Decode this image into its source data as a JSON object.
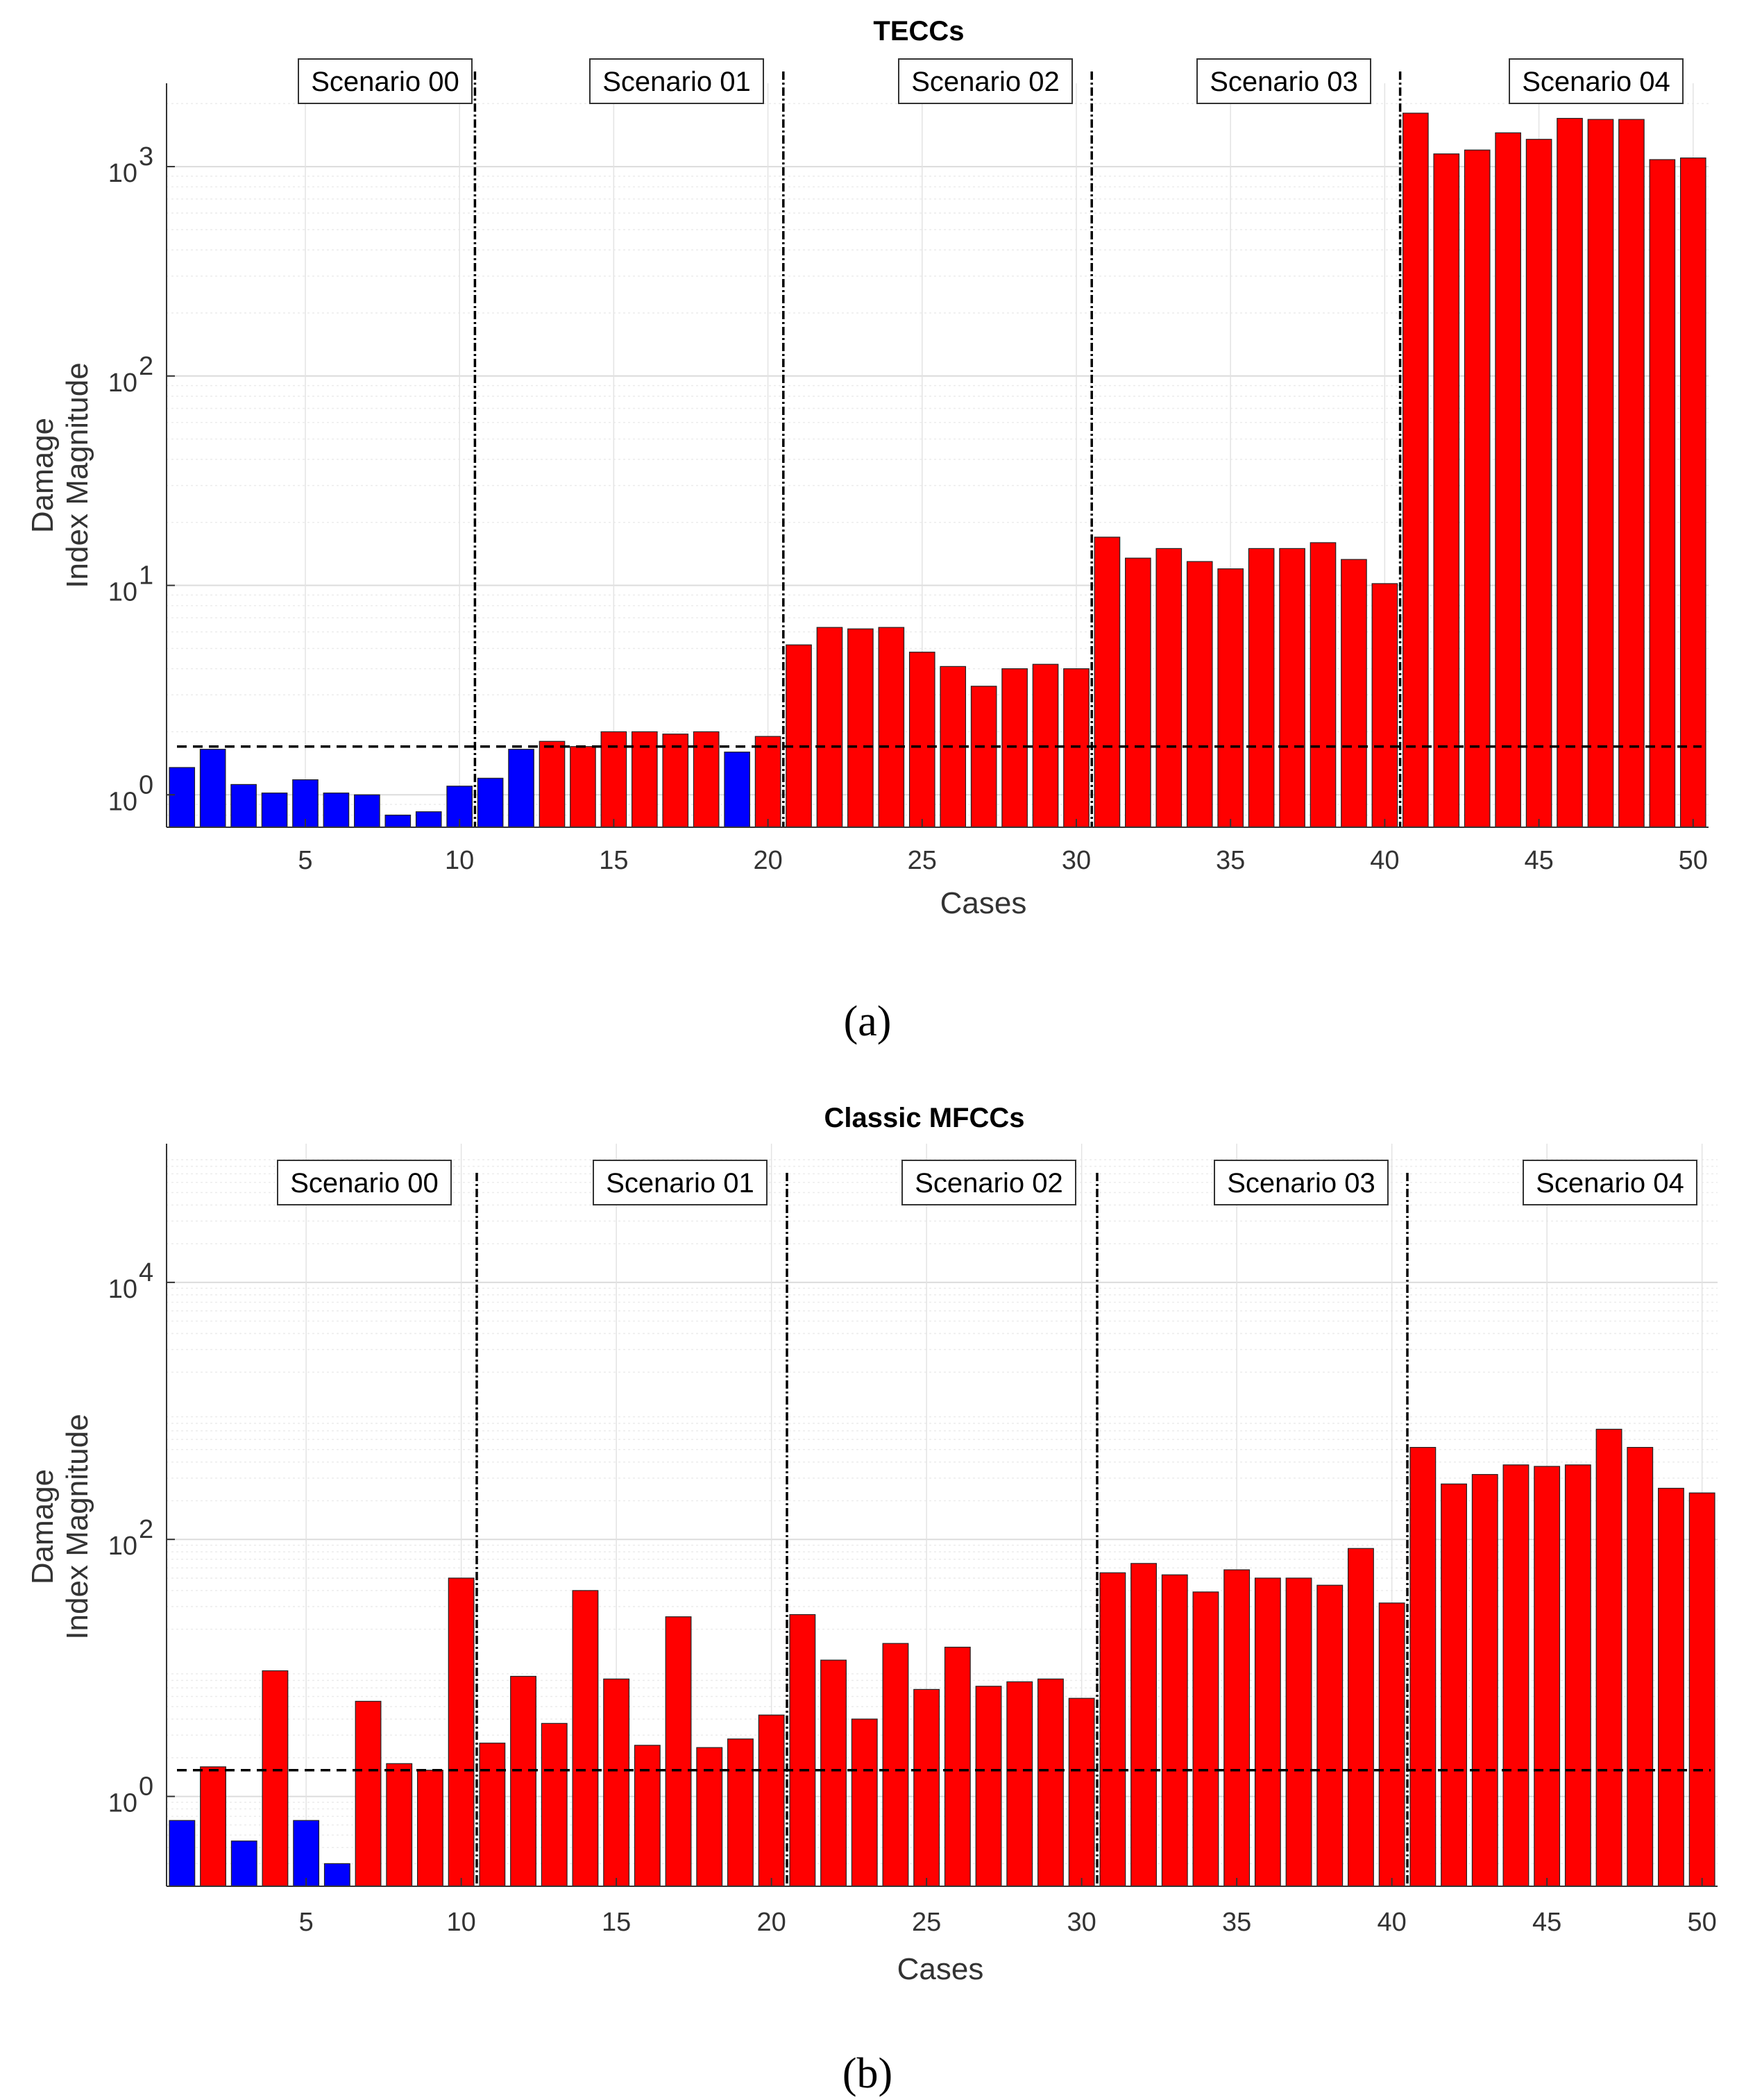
{
  "chart_data": [
    {
      "type": "bar",
      "panel_label": "(a)",
      "title": "TECCs",
      "xlabel": "Cases",
      "ylabel": [
        "Damage",
        "Index Magnitude"
      ],
      "yscale": "log",
      "ylim": [
        0.7,
        2500
      ],
      "xlim": [
        0.5,
        50.5
      ],
      "xticks": [
        5,
        10,
        15,
        20,
        25,
        30,
        35,
        40,
        45,
        50
      ],
      "yticks": [
        {
          "value": 1,
          "base": "10",
          "exp": "0"
        },
        {
          "value": 10,
          "base": "10",
          "exp": "1"
        },
        {
          "value": 100,
          "base": "10",
          "exp": "2"
        },
        {
          "value": 1000,
          "base": "10",
          "exp": "3"
        }
      ],
      "threshold": 1.7,
      "dividers": [
        10.5,
        20.5,
        30.5,
        40.5
      ],
      "scenarios": [
        "Scenario 00",
        "Scenario 01",
        "Scenario 02",
        "Scenario 03",
        "Scenario 04"
      ],
      "colors": {
        "undamaged": "#0000ff",
        "damaged": "#ff0000"
      },
      "x": [
        1,
        2,
        3,
        4,
        5,
        6,
        7,
        8,
        9,
        10,
        11,
        12,
        13,
        14,
        15,
        16,
        17,
        18,
        19,
        20,
        21,
        22,
        23,
        24,
        25,
        26,
        27,
        28,
        29,
        30,
        31,
        32,
        33,
        34,
        35,
        36,
        37,
        38,
        39,
        40,
        41,
        42,
        43,
        44,
        45,
        46,
        47,
        48,
        49,
        50
      ],
      "values": [
        1.35,
        1.65,
        1.12,
        1.02,
        1.18,
        1.02,
        1.0,
        0.8,
        0.83,
        1.1,
        1.2,
        1.65,
        1.8,
        1.7,
        2.0,
        2.0,
        1.95,
        2.0,
        1.6,
        1.9,
        5.2,
        6.3,
        6.2,
        6.3,
        4.8,
        4.1,
        3.3,
        4.0,
        4.2,
        4.0,
        17.0,
        13.5,
        15.0,
        13.0,
        12.0,
        15.0,
        15.0,
        16.0,
        13.3,
        10.2,
        1800,
        1150,
        1200,
        1450,
        1350,
        1700,
        1680,
        1680,
        1080,
        1100
      ],
      "status": [
        "u",
        "u",
        "u",
        "u",
        "u",
        "u",
        "u",
        "u",
        "u",
        "u",
        "u",
        "u",
        "d",
        "d",
        "d",
        "d",
        "d",
        "d",
        "u",
        "d",
        "d",
        "d",
        "d",
        "d",
        "d",
        "d",
        "d",
        "d",
        "d",
        "d",
        "d",
        "d",
        "d",
        "d",
        "d",
        "d",
        "d",
        "d",
        "d",
        "d",
        "d",
        "d",
        "d",
        "d",
        "d",
        "d",
        "d",
        "d",
        "d",
        "d"
      ]
    },
    {
      "type": "bar",
      "panel_label": "(b)",
      "title": "Classic MFCCs",
      "xlabel": "Cases",
      "ylabel": [
        "Damage",
        "Index Magnitude"
      ],
      "yscale": "log",
      "ylim": [
        0.2,
        120000
      ],
      "xlim": [
        0.5,
        50.5
      ],
      "xticks": [
        5,
        10,
        15,
        20,
        25,
        30,
        35,
        40,
        45,
        50
      ],
      "yticks": [
        {
          "value": 1,
          "base": "10",
          "exp": "0"
        },
        {
          "value": 100,
          "base": "10",
          "exp": "2"
        },
        {
          "value": 10000,
          "base": "10",
          "exp": "4"
        }
      ],
      "threshold": 1.6,
      "dividers": [
        10.5,
        20.5,
        30.5,
        40.5
      ],
      "scenarios": [
        "Scenario 00",
        "Scenario 01",
        "Scenario 02",
        "Scenario 03",
        "Scenario 04"
      ],
      "colors": {
        "undamaged": "#0000ff",
        "damaged": "#ff0000"
      },
      "x": [
        1,
        2,
        3,
        4,
        5,
        6,
        7,
        8,
        9,
        10,
        11,
        12,
        13,
        14,
        15,
        16,
        17,
        18,
        19,
        20,
        21,
        22,
        23,
        24,
        25,
        26,
        27,
        28,
        29,
        30,
        31,
        32,
        33,
        34,
        35,
        36,
        37,
        38,
        39,
        40,
        41,
        42,
        43,
        44,
        45,
        46,
        47,
        48,
        49,
        50
      ],
      "values": [
        0.65,
        1.7,
        0.45,
        9.5,
        0.65,
        0.3,
        5.5,
        1.8,
        1.6,
        50,
        2.6,
        8.6,
        3.7,
        40,
        8.2,
        2.5,
        25,
        2.4,
        2.8,
        4.3,
        26,
        11.5,
        4.0,
        15.5,
        6.8,
        14.5,
        7.2,
        7.8,
        8.2,
        5.8,
        55,
        65,
        53,
        39,
        58,
        50,
        50,
        44,
        85,
        32,
        520,
        270,
        320,
        380,
        370,
        380,
        720,
        520,
        250,
        230
      ],
      "status": [
        "u",
        "d",
        "u",
        "d",
        "u",
        "u",
        "d",
        "d",
        "d",
        "d",
        "d",
        "d",
        "d",
        "d",
        "d",
        "d",
        "d",
        "d",
        "d",
        "d",
        "d",
        "d",
        "d",
        "d",
        "d",
        "d",
        "d",
        "d",
        "d",
        "d",
        "d",
        "d",
        "d",
        "d",
        "d",
        "d",
        "d",
        "d",
        "d",
        "d",
        "d",
        "d",
        "d",
        "d",
        "d",
        "d",
        "d",
        "d",
        "d",
        "d"
      ]
    }
  ]
}
